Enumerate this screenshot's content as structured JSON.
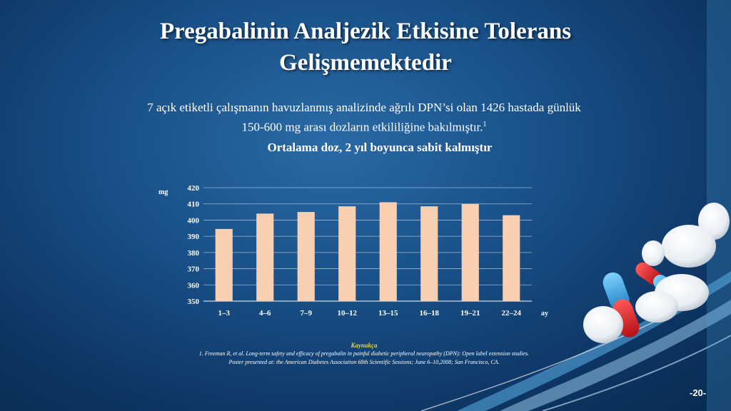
{
  "slide": {
    "title_line1": "Pregabalinin Analjezik Etkisine Tolerans",
    "title_line2": "Gelişmemektedir",
    "subtitle_line1": "7 açık etiketli çalışmanın havuzlanmış analizinde ağrılı DPN’si olan 1426 hastada günlük",
    "subtitle_line2": "150-600 mg arası dozların etkililiğine bakılmıştır.",
    "subtitle_sup": "1",
    "chart_heading": "Ortalama doz, 2 yıl boyunca sabit kalmıştır",
    "references_title": "Kaynakça",
    "reference_line1": "1. Freeman R, et al. Long-term safety and efficacy of pregabalin in painful diabetic peripheral neuropathy (DPN): Open label extension studies.",
    "reference_line2": "Poster presented at: the American Diabetes Association 68th Scientific Sessions; June 6–10,2008; San Francisco, CA.",
    "page_number": "-20-"
  },
  "colors": {
    "bar": "#f8cfb0",
    "gridline": "#c9d6e6",
    "reference_title": "#e8d24a"
  },
  "chart_data": {
    "type": "bar",
    "categories": [
      "1–3",
      "4–6",
      "7–9",
      "10–12",
      "13–15",
      "16–18",
      "19–21",
      "22–24"
    ],
    "values": [
      394.5,
      404,
      405,
      408.5,
      411,
      408.5,
      410,
      403
    ],
    "ylabel": "mg",
    "xlabel": "ay",
    "ylim": [
      350,
      420
    ],
    "yticks": [
      350,
      360,
      370,
      380,
      390,
      400,
      410,
      420
    ],
    "grid": true
  }
}
